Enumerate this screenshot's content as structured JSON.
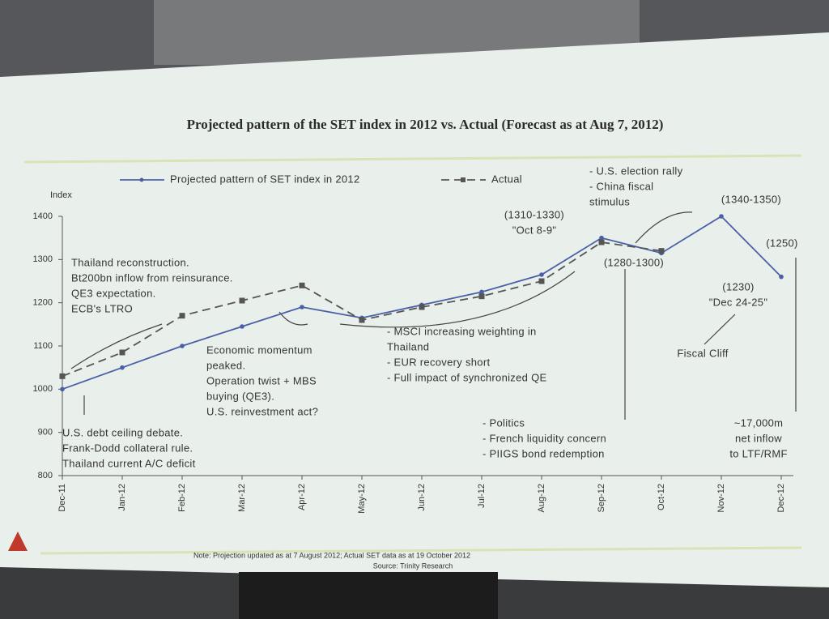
{
  "chart_data": {
    "type": "line",
    "title": "Projected pattern of the SET index in 2012 vs. Actual (Forecast as at Aug 7, 2012)",
    "y_label": "Index",
    "categories": [
      "Dec-11",
      "Jan-12",
      "Feb-12",
      "Mar-12",
      "Apr-12",
      "May-12",
      "Jun-12",
      "Jul-12",
      "Aug-12",
      "Sep-12",
      "Oct-12",
      "Nov-12",
      "Dec-12"
    ],
    "series": [
      {
        "name": "Projected pattern of SET index in 2012",
        "color": "#4a5fa8",
        "dashed": false,
        "marker": "dot",
        "values": [
          1000,
          1050,
          1100,
          1145,
          1190,
          1165,
          1195,
          1225,
          1265,
          1350,
          1315,
          1400,
          1260
        ]
      },
      {
        "name": "Actual",
        "color": "#555555",
        "dashed": true,
        "marker": "square",
        "values": [
          1030,
          1085,
          1170,
          1205,
          1240,
          1160,
          1190,
          1215,
          1250,
          1340,
          1320,
          null,
          null
        ]
      }
    ],
    "ylim": [
      800,
      1400
    ],
    "yticks": [
      800,
      900,
      1000,
      1100,
      1200,
      1300,
      1400
    ],
    "annotations": [
      [
        "Thailand reconstruction.",
        "Bt200bn inflow from reinsurance.",
        "QE3 expectation.",
        "ECB's LTRO"
      ],
      [
        "U.S. debt ceiling debate.",
        "Frank-Dodd collateral rule.",
        "Thailand current A/C deficit"
      ],
      [
        "Economic momentum",
        "peaked.",
        "Operation twist + MBS",
        "buying (QE3).",
        "U.S. reinvestment act?"
      ],
      [
        "- MSCI increasing weighting in",
        "Thailand",
        "- EUR recovery short",
        "- Full impact of synchronized QE"
      ],
      [
        "- Politics",
        "- French liquidity concern",
        "- PIIGS bond redemption"
      ],
      [
        "(1310-1330)",
        "\"Oct 8-9\""
      ],
      [
        "- U.S. election rally",
        "- China fiscal",
        "stimulus"
      ],
      [
        "(1340-1350)"
      ],
      [
        "(1280-1300)"
      ],
      [
        "(1250)"
      ],
      [
        "(1230)",
        "\"Dec 24-25\""
      ],
      [
        "Fiscal Cliff"
      ],
      [
        "~17,000m",
        "net inflow",
        "to LTF/RMF"
      ]
    ],
    "note": "Note: Projection updated as at 7 August 2012; Actual SET data as at 19 October 2012",
    "source": "Source: Trinity Research"
  }
}
